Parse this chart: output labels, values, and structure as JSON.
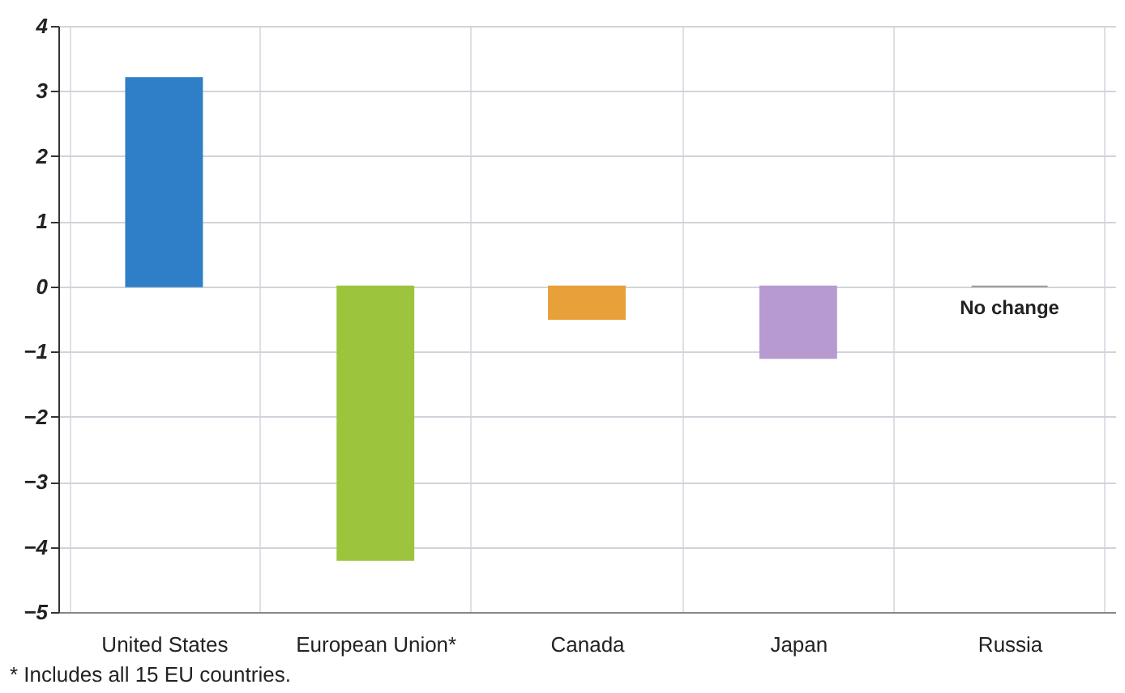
{
  "chart_data": {
    "type": "bar",
    "categories": [
      "United States",
      "European Union*",
      "Canada",
      "Japan",
      "Russia"
    ],
    "values": [
      3.2,
      -4.2,
      -0.5,
      -1.1,
      0
    ],
    "colors": [
      "#2f7fc8",
      "#9cc43c",
      "#e8a03a",
      "#b79ad0",
      "#999999"
    ],
    "ylim": [
      -5,
      4
    ],
    "yticks": [
      -5,
      -4,
      -3,
      -2,
      -1,
      0,
      1,
      2,
      3,
      4
    ],
    "grid": true,
    "annotations": [
      {
        "text": "No change",
        "x": "Russia",
        "y": 0
      },
      "* Includes all 15 EU countries."
    ]
  }
}
